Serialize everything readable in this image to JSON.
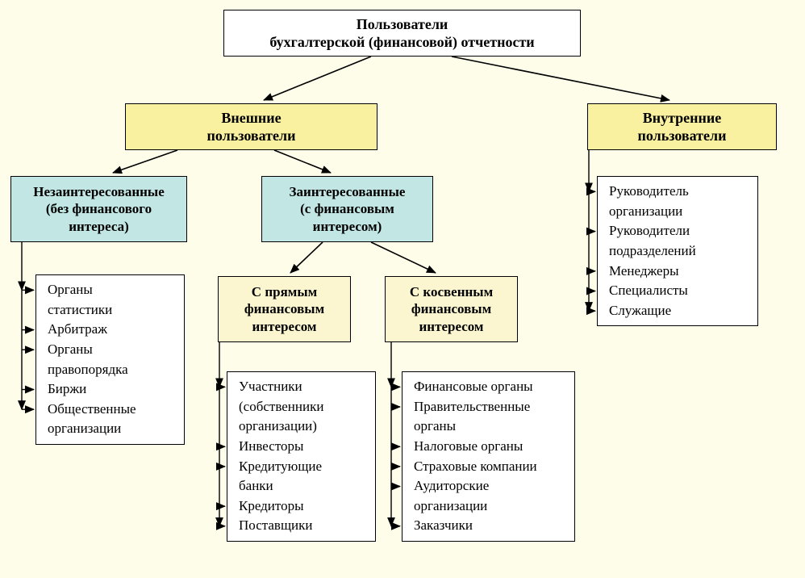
{
  "diagram": {
    "type": "tree",
    "background_color": "#fdfde9",
    "border_color": "#000000",
    "font_family": "Times New Roman",
    "colors": {
      "root_bg": "#ffffff",
      "yellow_bg": "#f9f0a0",
      "cyan_bg": "#c1e6e4",
      "pale_yellow_bg": "#fbf6cf",
      "list_bg": "#ffffff"
    },
    "root": {
      "line1": "Пользователи",
      "line2": "бухгалтерской (финансовой) отчетности",
      "fontsize": 18,
      "bold": true
    },
    "external": {
      "title_line1": "Внешние",
      "title_line2": "пользователи",
      "fontsize": 18,
      "bold": true
    },
    "internal": {
      "title_line1": "Внутренние",
      "title_line2": "пользователи",
      "fontsize": 18,
      "bold": true,
      "items": [
        "Руководитель",
        "организации",
        "Руководители",
        "подразделений",
        "Менеджеры",
        "Специалисты",
        "Служащие"
      ],
      "arrow_rows": [
        0,
        2,
        4,
        5,
        6
      ]
    },
    "noninterested": {
      "line1": "Незаинтересованные",
      "line2": "(без финансового",
      "line3": "интереса)",
      "fontsize": 17,
      "bold": true,
      "items": [
        "Органы",
        "статистики",
        "Арбитраж",
        "Органы",
        "правопорядка",
        "Биржи",
        "Общественные",
        "организации"
      ],
      "arrow_rows": [
        0,
        2,
        3,
        5,
        6
      ]
    },
    "interested": {
      "line1": "Заинтересованные",
      "line2": "(с финансовым",
      "line3": "интересом)",
      "fontsize": 17,
      "bold": true
    },
    "direct": {
      "line1": "С прямым",
      "line2": "финансовым",
      "line3": "интересом",
      "fontsize": 17,
      "bold": true,
      "items": [
        "Участники",
        "(собственники",
        "организации)",
        "Инвесторы",
        "Кредитующие",
        "банки",
        "Кредиторы",
        "Поставщики"
      ],
      "arrow_rows": [
        0,
        3,
        4,
        6,
        7
      ]
    },
    "indirect": {
      "line1": "С косвенным",
      "line2": "финансовым",
      "line3": "интересом",
      "fontsize": 17,
      "bold": true,
      "items": [
        "Финансовые органы",
        "Правительственные",
        "органы",
        "Налоговые органы",
        "Страховые компании",
        "Аудиторские",
        "организации",
        "Заказчики"
      ],
      "arrow_rows": [
        0,
        1,
        3,
        4,
        5,
        7
      ]
    },
    "list_fontsize": 17
  }
}
